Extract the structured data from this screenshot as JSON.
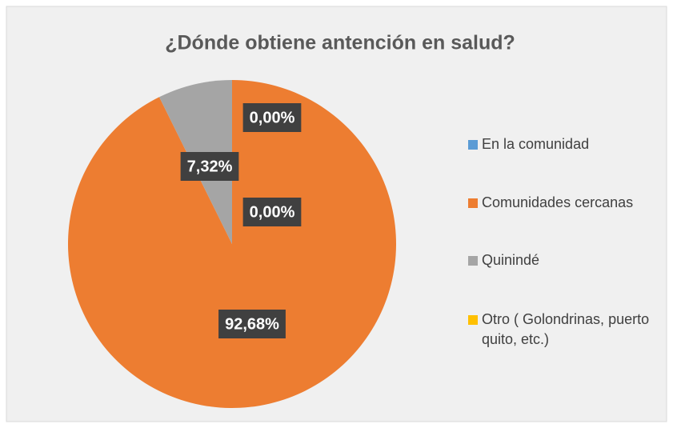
{
  "chart_data": {
    "type": "pie",
    "title": "¿Dónde obtiene antención en salud?",
    "categories": [
      "En la comunidad",
      "Comunidades cercanas",
      "Quinindé",
      "Otro ( Golondrinas, puerto quito, etc.)"
    ],
    "values": [
      0,
      92.68,
      7.32,
      0
    ],
    "value_labels": [
      "0,00%",
      "92,68%",
      "7,32%",
      "0,00%"
    ],
    "colors": [
      "#5b9bd5",
      "#ed7d31",
      "#a5a5a5",
      "#ffc000"
    ],
    "legend": "right"
  }
}
